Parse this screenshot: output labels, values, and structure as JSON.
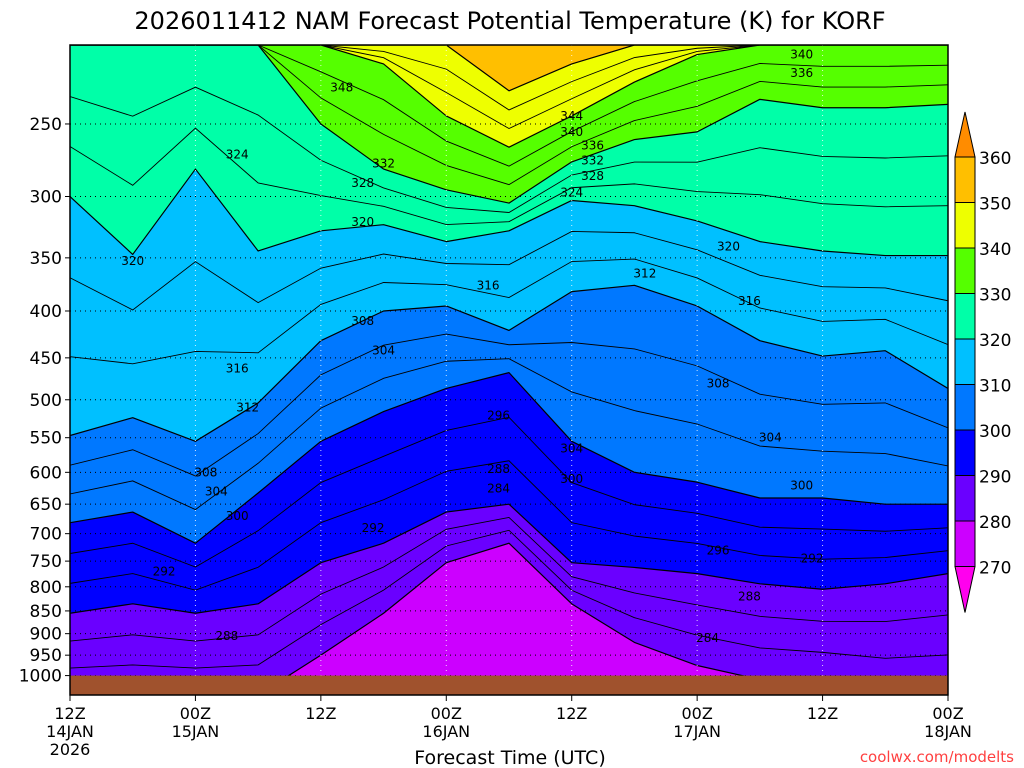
{
  "chart_data": {
    "type": "heatmap",
    "subtype": "filled-contour time-height cross-section",
    "title": "2026011412 NAM Forecast Potential Temperature (K) for KORF",
    "xlabel": "Forecast Time (UTC)",
    "ylabel": "",
    "credit": "coolwx.com/modelts",
    "x_hours": [
      0,
      6,
      12,
      18,
      24,
      30,
      36,
      42,
      48,
      54,
      60,
      66,
      72,
      78,
      84
    ],
    "xlim": [
      0,
      84
    ],
    "ylim": [
      1050,
      205
    ],
    "yscale": "log",
    "x_ticks": [
      {
        "h": 0,
        "l1": "12Z",
        "l2": "14JAN",
        "l3": "2026"
      },
      {
        "h": 12,
        "l1": "00Z",
        "l2": "15JAN",
        "l3": ""
      },
      {
        "h": 24,
        "l1": "12Z",
        "l2": "",
        "l3": ""
      },
      {
        "h": 36,
        "l1": "00Z",
        "l2": "16JAN",
        "l3": ""
      },
      {
        "h": 48,
        "l1": "12Z",
        "l2": "",
        "l3": ""
      },
      {
        "h": 60,
        "l1": "00Z",
        "l2": "17JAN",
        "l3": ""
      },
      {
        "h": 72,
        "l1": "12Z",
        "l2": "",
        "l3": ""
      },
      {
        "h": 84,
        "l1": "00Z",
        "l2": "18JAN",
        "l3": ""
      }
    ],
    "y_ticks": [
      "250",
      "300",
      "350",
      "400",
      "450",
      "500",
      "550",
      "600",
      "650",
      "700",
      "750",
      "800",
      "850",
      "900",
      "950",
      "1000"
    ],
    "ground_pressure": 1000,
    "isentropes": [
      {
        "level": 280,
        "pressure": [
          1050,
          1050,
          1050,
          1050,
          950,
          855,
          753,
          717,
          835,
          920,
          975,
          1010,
          1020,
          1050,
          1050
        ]
      },
      {
        "level": 290,
        "pressure": [
          855,
          835,
          855,
          835,
          753,
          717,
          663,
          650,
          753,
          762,
          774,
          794,
          805,
          794,
          774
        ]
      },
      {
        "level": 300,
        "pressure": [
          681,
          663,
          717,
          632,
          555,
          515,
          486,
          467,
          555,
          600,
          615,
          640,
          640,
          650,
          650
        ]
      },
      {
        "level": 310,
        "pressure": [
          547,
          523,
          555,
          504,
          431,
          400,
          395,
          420,
          381,
          375,
          395,
          431,
          448,
          442,
          486
        ]
      },
      {
        "level": 320,
        "pressure": [
          300,
          347,
          280,
          344,
          327,
          322,
          336,
          327,
          303,
          307,
          319,
          336,
          344,
          348,
          348
        ]
      },
      {
        "level": 330,
        "pressure": [
          205,
          205,
          205,
          205,
          250,
          280,
          295,
          305,
          275,
          260,
          255,
          235,
          240,
          240,
          238
        ]
      },
      {
        "level": 340,
        "pressure": [
          205,
          205,
          205,
          205,
          205,
          215,
          245,
          265,
          245,
          225,
          210,
          205,
          205,
          205,
          205
        ]
      },
      {
        "level": 350,
        "pressure": [
          205,
          205,
          205,
          205,
          205,
          205,
          205,
          230,
          215,
          205,
          205,
          205,
          205,
          205,
          205
        ]
      }
    ],
    "contour_labels": [
      {
        "text": "348",
        "h": 26,
        "p": 228
      },
      {
        "text": "344",
        "h": 48,
        "p": 245
      },
      {
        "text": "340",
        "h": 48,
        "p": 255
      },
      {
        "text": "336",
        "h": 50,
        "p": 264
      },
      {
        "text": "332",
        "h": 50,
        "p": 274
      },
      {
        "text": "328",
        "h": 50,
        "p": 285
      },
      {
        "text": "324",
        "h": 48,
        "p": 297
      },
      {
        "text": "340",
        "h": 70,
        "p": 210
      },
      {
        "text": "336",
        "h": 70,
        "p": 220
      },
      {
        "text": "324",
        "h": 16,
        "p": 270
      },
      {
        "text": "332",
        "h": 30,
        "p": 276
      },
      {
        "text": "328",
        "h": 28,
        "p": 290
      },
      {
        "text": "320",
        "h": 28,
        "p": 320
      },
      {
        "text": "320",
        "h": 6,
        "p": 353
      },
      {
        "text": "320",
        "h": 63,
        "p": 340
      },
      {
        "text": "316",
        "h": 40,
        "p": 375
      },
      {
        "text": "312",
        "h": 55,
        "p": 364
      },
      {
        "text": "316",
        "h": 65,
        "p": 390
      },
      {
        "text": "308",
        "h": 28,
        "p": 410
      },
      {
        "text": "304",
        "h": 30,
        "p": 442
      },
      {
        "text": "316",
        "h": 16,
        "p": 462
      },
      {
        "text": "312",
        "h": 17,
        "p": 510
      },
      {
        "text": "308",
        "h": 62,
        "p": 480
      },
      {
        "text": "304",
        "h": 67,
        "p": 550
      },
      {
        "text": "296",
        "h": 41,
        "p": 520
      },
      {
        "text": "304",
        "h": 48,
        "p": 565
      },
      {
        "text": "300",
        "h": 48,
        "p": 610
      },
      {
        "text": "300",
        "h": 70,
        "p": 620
      },
      {
        "text": "308",
        "h": 13,
        "p": 600
      },
      {
        "text": "304",
        "h": 14,
        "p": 630
      },
      {
        "text": "300",
        "h": 16,
        "p": 670
      },
      {
        "text": "292",
        "h": 29,
        "p": 690
      },
      {
        "text": "292",
        "h": 9,
        "p": 770
      },
      {
        "text": "288",
        "h": 41,
        "p": 595
      },
      {
        "text": "284",
        "h": 41,
        "p": 625
      },
      {
        "text": "296",
        "h": 62,
        "p": 730
      },
      {
        "text": "292",
        "h": 71,
        "p": 745
      },
      {
        "text": "288",
        "h": 65,
        "p": 820
      },
      {
        "text": "284",
        "h": 61,
        "p": 910
      },
      {
        "text": "288",
        "h": 15,
        "p": 905
      }
    ],
    "colorbar": {
      "labels": [
        "360",
        "350",
        "340",
        "330",
        "320",
        "310",
        "300",
        "290",
        "280",
        "270"
      ],
      "colors": [
        "#ff8c00",
        "#ffbf00",
        "#eeff00",
        "#55ff00",
        "#00ffa8",
        "#00c0ff",
        "#0078ff",
        "#0000ff",
        "#6a00ff",
        "#cc00ff",
        "#ff00ee"
      ]
    },
    "ground_color": "#a0522d"
  }
}
